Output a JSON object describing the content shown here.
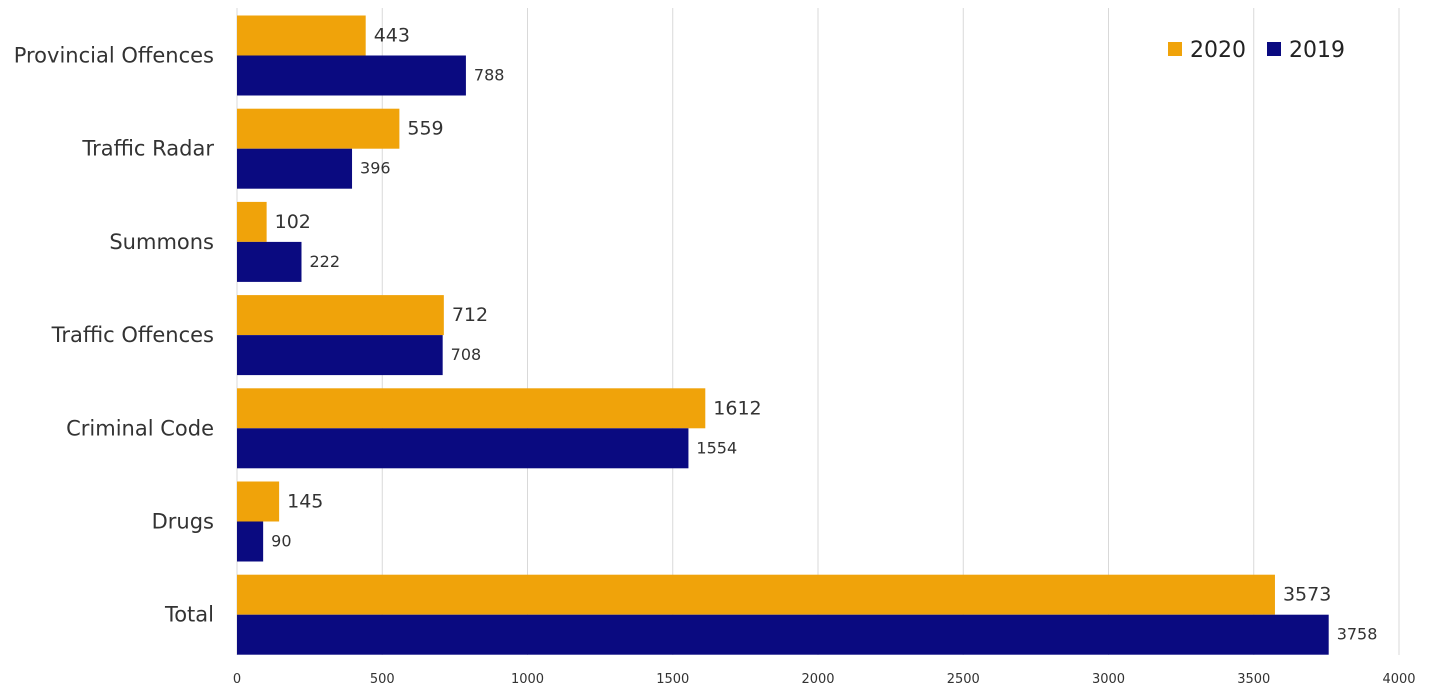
{
  "chart_data": {
    "type": "bar",
    "orientation": "horizontal",
    "categories": [
      "Provincial Offences",
      "Traffic Radar",
      "Summons",
      "Traffic Offences",
      "Criminal Code",
      "Drugs",
      "Total"
    ],
    "series": [
      {
        "name": "2020",
        "color": "#F0A30A",
        "values": [
          443,
          559,
          102,
          712,
          1612,
          145,
          3573
        ]
      },
      {
        "name": "2019",
        "color": "#0A0A80",
        "values": [
          788,
          396,
          222,
          708,
          1554,
          90,
          3758
        ]
      }
    ],
    "xlim": [
      0,
      4000
    ],
    "ticks": [
      "0",
      "500",
      "1000",
      "1500",
      "2000",
      "2500",
      "3000",
      "3500",
      "4000"
    ],
    "grid": true,
    "legend_position": "top-right",
    "data_labels": true
  }
}
